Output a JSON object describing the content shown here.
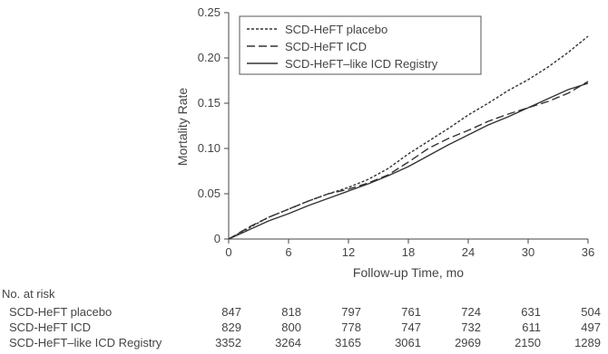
{
  "chart_data": {
    "type": "line",
    "xlabel": "Follow-up Time, mo",
    "ylabel": "Mortality Rate",
    "xlim": [
      0,
      36
    ],
    "ylim": [
      0,
      0.25
    ],
    "xticks": [
      "0",
      "6",
      "12",
      "18",
      "24",
      "30",
      "36"
    ],
    "yticks": [
      "0",
      "0.05",
      "0.10",
      "0.15",
      "0.20",
      "0.25"
    ],
    "grid": false,
    "legend_position": "top-left",
    "series": [
      {
        "name": "SCD-HeFT placebo",
        "style": "dotted",
        "x": [
          0,
          2,
          4,
          6,
          8,
          10,
          12,
          14,
          16,
          18,
          20,
          22,
          24,
          26,
          28,
          30,
          32,
          34,
          36
        ],
        "y": [
          0,
          0.012,
          0.024,
          0.033,
          0.042,
          0.05,
          0.057,
          0.066,
          0.078,
          0.094,
          0.108,
          0.122,
          0.137,
          0.15,
          0.164,
          0.176,
          0.19,
          0.206,
          0.224
        ]
      },
      {
        "name": "SCD-HeFT ICD",
        "style": "dashed",
        "x": [
          0,
          2,
          4,
          6,
          8,
          10,
          12,
          14,
          16,
          18,
          20,
          22,
          24,
          26,
          28,
          30,
          32,
          34,
          36
        ],
        "y": [
          0,
          0.013,
          0.024,
          0.033,
          0.042,
          0.05,
          0.055,
          0.062,
          0.071,
          0.085,
          0.1,
          0.111,
          0.12,
          0.13,
          0.138,
          0.145,
          0.152,
          0.161,
          0.174
        ]
      },
      {
        "name": "SCD-HeFT–like ICD Registry",
        "style": "solid",
        "x": [
          0,
          2,
          4,
          6,
          8,
          10,
          12,
          14,
          16,
          18,
          20,
          22,
          24,
          26,
          28,
          30,
          32,
          34,
          36
        ],
        "y": [
          0,
          0.01,
          0.02,
          0.028,
          0.037,
          0.045,
          0.053,
          0.061,
          0.07,
          0.08,
          0.092,
          0.104,
          0.115,
          0.126,
          0.135,
          0.145,
          0.155,
          0.165,
          0.172
        ]
      }
    ]
  },
  "risk_table": {
    "heading": "No. at risk",
    "columns": [
      "0",
      "6",
      "12",
      "18",
      "24",
      "30",
      "36"
    ],
    "rows": [
      {
        "label": "SCD-HeFT placebo",
        "values": [
          "847",
          "818",
          "797",
          "761",
          "724",
          "631",
          "504"
        ]
      },
      {
        "label": "SCD-HeFT ICD",
        "values": [
          "829",
          "800",
          "778",
          "747",
          "732",
          "611",
          "497"
        ]
      },
      {
        "label": "SCD-HeFT–like ICD Registry",
        "values": [
          "3352",
          "3264",
          "3165",
          "3061",
          "2969",
          "2150",
          "1289"
        ]
      }
    ]
  }
}
